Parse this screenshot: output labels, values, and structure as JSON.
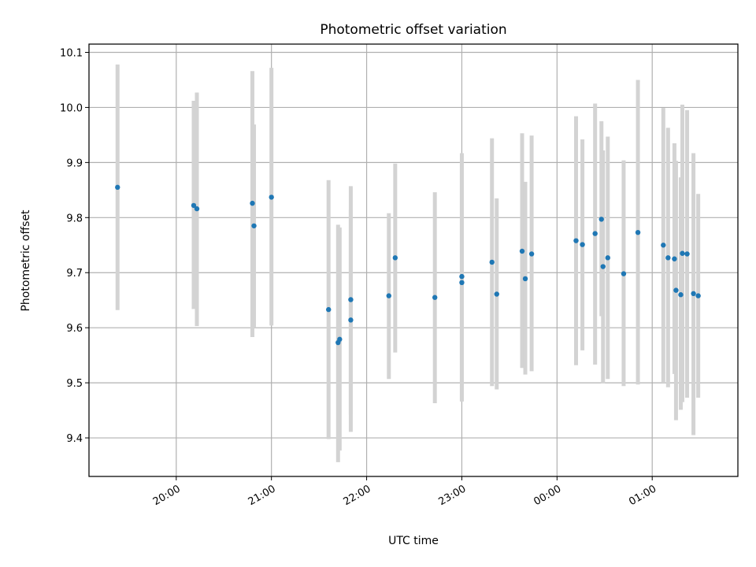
{
  "chart_data": {
    "type": "scatter",
    "title": "Photometric offset variation",
    "xlabel": "UTC time",
    "ylabel": "Photometric offset",
    "x_tick_labels": [
      "20:00",
      "21:00",
      "22:00",
      "23:00",
      "00:00",
      "01:00"
    ],
    "y_tick_labels": [
      "9.4",
      "9.5",
      "9.6",
      "9.7",
      "9.8",
      "9.9",
      "10.0",
      "10.1"
    ],
    "xlim": [
      "19:05",
      "01:54"
    ],
    "ylim": [
      9.33,
      10.115
    ],
    "grid": true,
    "colors": {
      "point": "#1f77b4",
      "errorbar": "#d3d3d3",
      "grid": "#b0b0b0",
      "axes": "#000000"
    },
    "series": [
      {
        "points": [
          {
            "x": "19:23",
            "y": 9.855,
            "ylow": 9.632,
            "yhigh": 10.078
          },
          {
            "x": "20:11",
            "y": 9.822,
            "ylow": 9.634,
            "yhigh": 10.012
          },
          {
            "x": "20:13",
            "y": 9.816,
            "ylow": 9.603,
            "yhigh": 10.027
          },
          {
            "x": "20:48",
            "y": 9.826,
            "ylow": 9.583,
            "yhigh": 10.066
          },
          {
            "x": "20:49",
            "y": 9.785,
            "ylow": 9.6,
            "yhigh": 9.969
          },
          {
            "x": "21:00",
            "y": 9.837,
            "ylow": 9.604,
            "yhigh": 10.072
          },
          {
            "x": "21:36",
            "y": 9.633,
            "ylow": 9.398,
            "yhigh": 9.868
          },
          {
            "x": "21:42",
            "y": 9.573,
            "ylow": 9.356,
            "yhigh": 9.787
          },
          {
            "x": "21:43",
            "y": 9.579,
            "ylow": 9.377,
            "yhigh": 9.782
          },
          {
            "x": "21:50",
            "y": 9.651,
            "ylow": 9.442,
            "yhigh": 9.857
          },
          {
            "x": "21:50",
            "y": 9.614,
            "ylow": 9.411,
            "yhigh": 9.814
          },
          {
            "x": "22:14",
            "y": 9.658,
            "ylow": 9.507,
            "yhigh": 9.808
          },
          {
            "x": "22:18",
            "y": 9.727,
            "ylow": 9.555,
            "yhigh": 9.898
          },
          {
            "x": "22:43",
            "y": 9.655,
            "ylow": 9.463,
            "yhigh": 9.846
          },
          {
            "x": "23:00",
            "y": 9.693,
            "ylow": 9.468,
            "yhigh": 9.917
          },
          {
            "x": "23:00",
            "y": 9.682,
            "ylow": 9.466,
            "yhigh": 9.897
          },
          {
            "x": "23:19",
            "y": 9.719,
            "ylow": 9.494,
            "yhigh": 9.944
          },
          {
            "x": "23:22",
            "y": 9.661,
            "ylow": 9.488,
            "yhigh": 9.835
          },
          {
            "x": "23:38",
            "y": 9.739,
            "ylow": 9.527,
            "yhigh": 9.953
          },
          {
            "x": "23:40",
            "y": 9.689,
            "ylow": 9.515,
            "yhigh": 9.865
          },
          {
            "x": "23:44",
            "y": 9.734,
            "ylow": 9.521,
            "yhigh": 9.949
          },
          {
            "x": "00:12",
            "y": 9.758,
            "ylow": 9.532,
            "yhigh": 9.984
          },
          {
            "x": "00:16",
            "y": 9.751,
            "ylow": 9.559,
            "yhigh": 9.942
          },
          {
            "x": "00:24",
            "y": 9.771,
            "ylow": 9.533,
            "yhigh": 10.007
          },
          {
            "x": "00:28",
            "y": 9.797,
            "ylow": 9.621,
            "yhigh": 9.975
          },
          {
            "x": "00:29",
            "y": 9.711,
            "ylow": 9.499,
            "yhigh": 9.922
          },
          {
            "x": "00:32",
            "y": 9.727,
            "ylow": 9.507,
            "yhigh": 9.947
          },
          {
            "x": "00:42",
            "y": 9.698,
            "ylow": 9.494,
            "yhigh": 9.904
          },
          {
            "x": "00:51",
            "y": 9.773,
            "ylow": 9.497,
            "yhigh": 10.05
          },
          {
            "x": "01:07",
            "y": 9.75,
            "ylow": 9.5,
            "yhigh": 9.999
          },
          {
            "x": "01:10",
            "y": 9.727,
            "ylow": 9.492,
            "yhigh": 9.963
          },
          {
            "x": "01:14",
            "y": 9.725,
            "ylow": 9.516,
            "yhigh": 9.935
          },
          {
            "x": "01:15",
            "y": 9.668,
            "ylow": 9.432,
            "yhigh": 9.903
          },
          {
            "x": "01:18",
            "y": 9.66,
            "ylow": 9.451,
            "yhigh": 9.873
          },
          {
            "x": "01:19",
            "y": 9.735,
            "ylow": 9.465,
            "yhigh": 10.005
          },
          {
            "x": "01:22",
            "y": 9.734,
            "ylow": 9.473,
            "yhigh": 9.995
          },
          {
            "x": "01:26",
            "y": 9.662,
            "ylow": 9.405,
            "yhigh": 9.917
          },
          {
            "x": "01:29",
            "y": 9.658,
            "ylow": 9.473,
            "yhigh": 9.843
          }
        ]
      }
    ]
  }
}
